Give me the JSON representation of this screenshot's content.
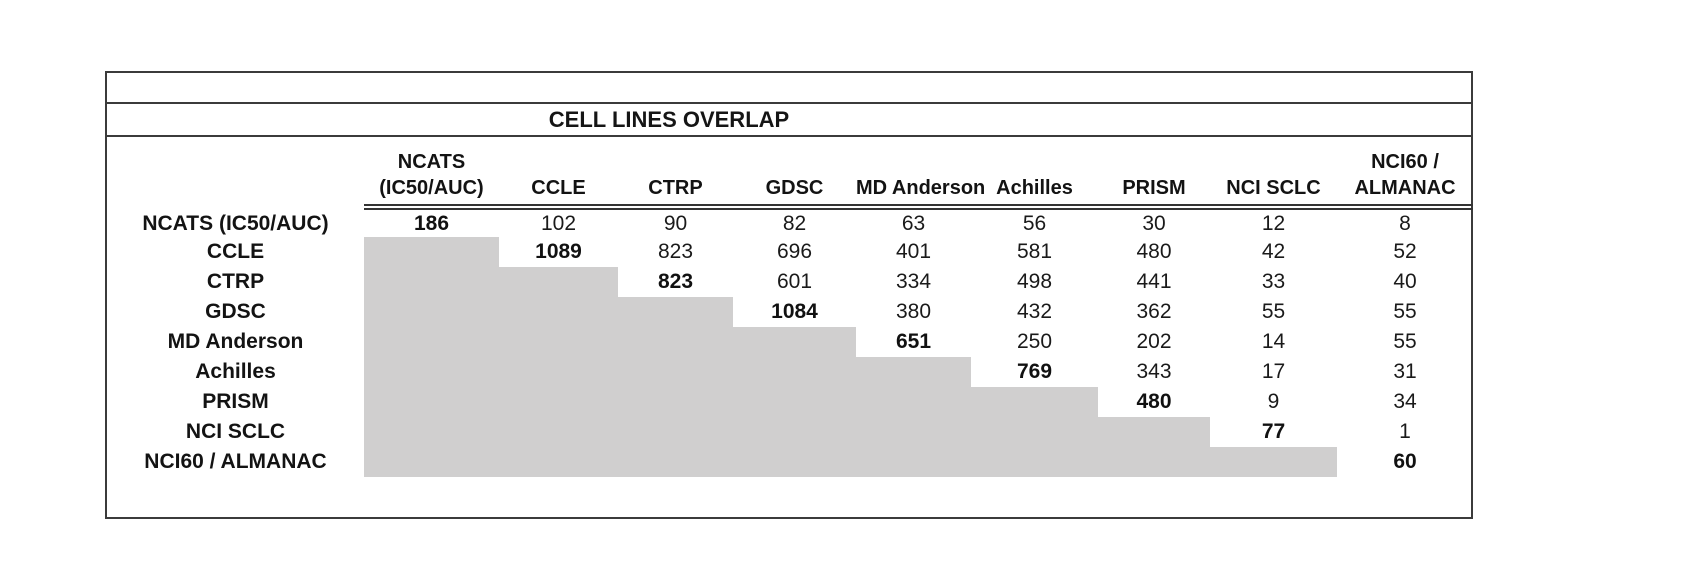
{
  "title": "CELL LINES OVERLAP",
  "colors": {
    "fill_gray": "#d0cfcf",
    "border_dark": "#3b3b3b",
    "text": "#1a1a1a",
    "background": "#ffffff"
  },
  "chart_data": {
    "type": "table",
    "title": "CELL LINES OVERLAP",
    "layout_hints": {
      "diagonal_bold": true,
      "lower_triangle_filled_gray": true,
      "double_rule_under_headers": true
    },
    "columns": [
      "NCATS\n(IC50/AUC)",
      "CCLE",
      "CTRP",
      "GDSC",
      "MD Anderson",
      "Achilles",
      "PRISM",
      "NCI SCLC",
      "NCI60 /\nALMANAC"
    ],
    "rows": [
      {
        "label": "NCATS (IC50/AUC)",
        "values": [
          186,
          102,
          90,
          82,
          63,
          56,
          30,
          12,
          8
        ]
      },
      {
        "label": "CCLE",
        "values": [
          null,
          1089,
          823,
          696,
          401,
          581,
          480,
          42,
          52
        ]
      },
      {
        "label": "CTRP",
        "values": [
          null,
          null,
          823,
          601,
          334,
          498,
          441,
          33,
          40
        ]
      },
      {
        "label": "GDSC",
        "values": [
          null,
          null,
          null,
          1084,
          380,
          432,
          362,
          55,
          55
        ]
      },
      {
        "label": "MD Anderson",
        "values": [
          null,
          null,
          null,
          null,
          651,
          250,
          202,
          14,
          55
        ]
      },
      {
        "label": "Achilles",
        "values": [
          null,
          null,
          null,
          null,
          null,
          769,
          343,
          17,
          31
        ]
      },
      {
        "label": "PRISM",
        "values": [
          null,
          null,
          null,
          null,
          null,
          null,
          480,
          9,
          34
        ]
      },
      {
        "label": "NCI SCLC",
        "values": [
          null,
          null,
          null,
          null,
          null,
          null,
          null,
          77,
          1
        ]
      },
      {
        "label": "NCI60 / ALMANAC",
        "values": [
          null,
          null,
          null,
          null,
          null,
          null,
          null,
          null,
          60
        ]
      }
    ]
  }
}
